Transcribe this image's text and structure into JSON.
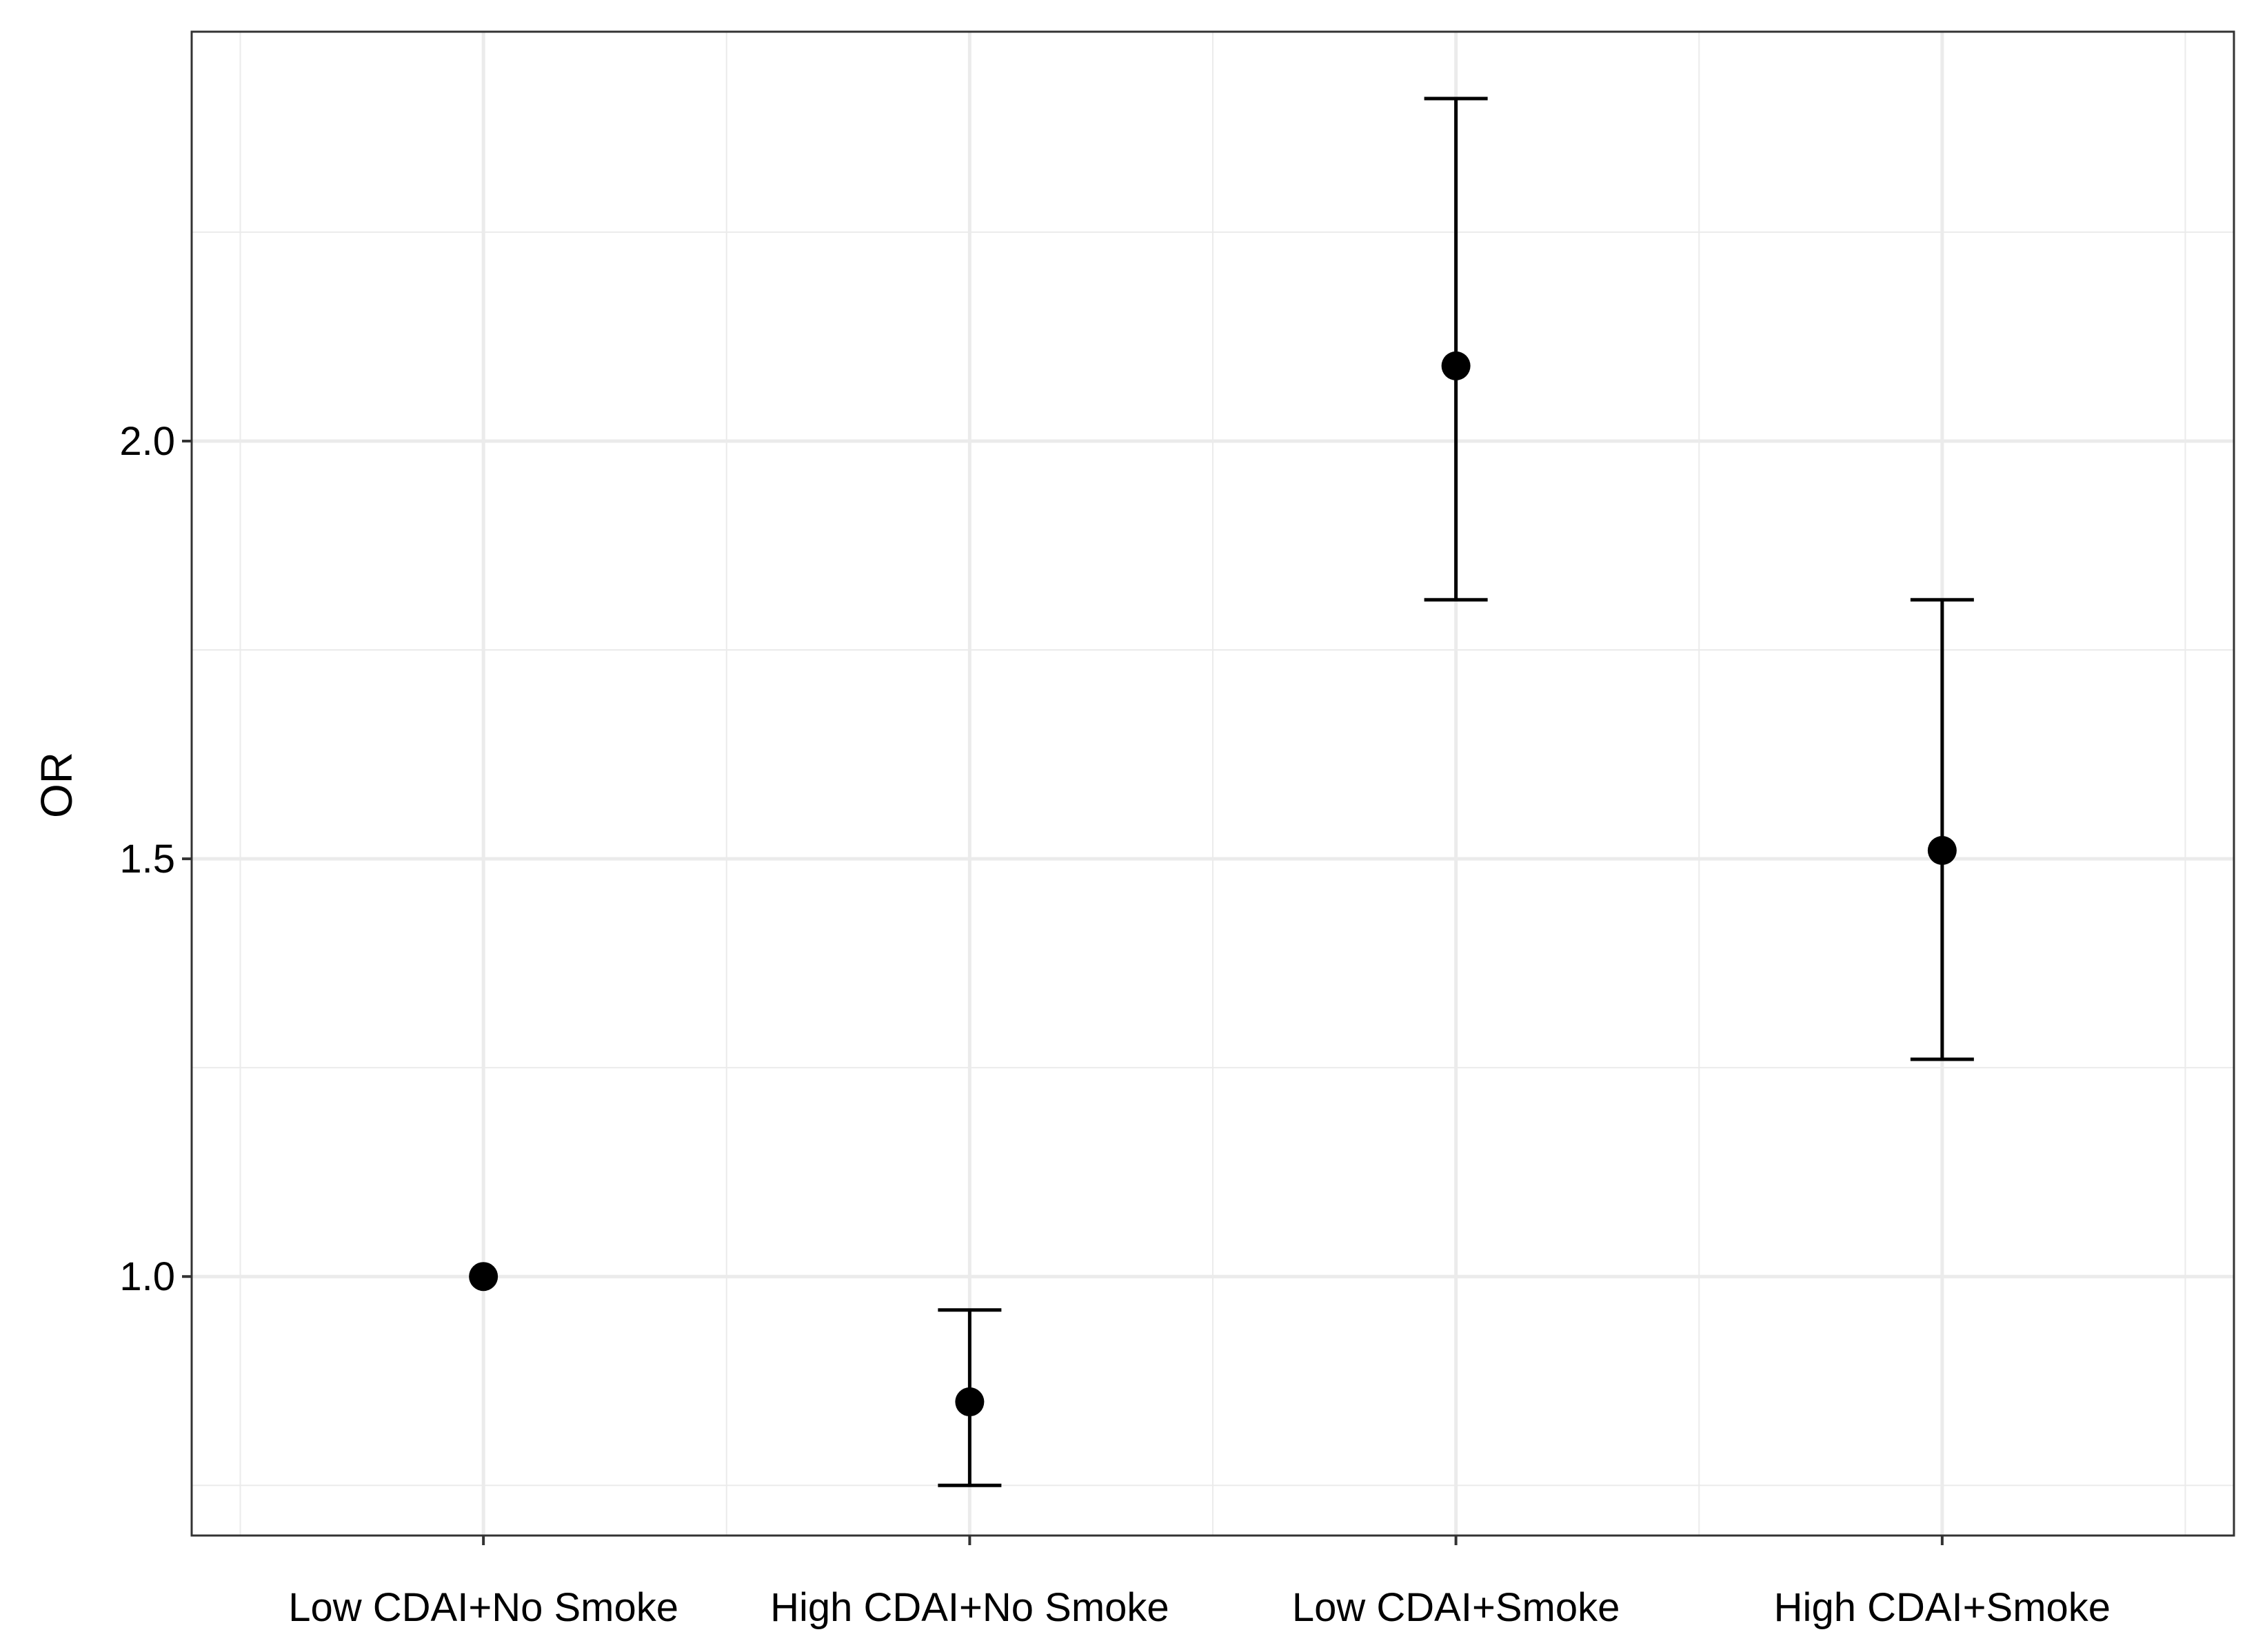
{
  "chart_data": {
    "type": "scatter",
    "subtype": "point-with-error-bars",
    "title": "",
    "xlabel": "",
    "ylabel": "OR",
    "categories": [
      "Low CDAI+No Smoke",
      "High CDAI+No Smoke",
      "Low CDAI+Smoke",
      "High CDAI+Smoke"
    ],
    "series": [
      {
        "name": "OR",
        "values": [
          1.0,
          0.85,
          2.09,
          1.51
        ],
        "lower": [
          null,
          0.75,
          1.81,
          1.26
        ],
        "upper": [
          null,
          0.96,
          2.41,
          1.81
        ]
      }
    ],
    "ylim": [
      0.69,
      2.49
    ],
    "y_ticks": [
      1.0,
      1.5,
      2.0
    ],
    "y_tick_labels": [
      "1.0",
      "1.5",
      "2.0"
    ],
    "y_minor_ticks": [
      0.75,
      1.25,
      1.75,
      2.25
    ],
    "grid": true,
    "legend": "none",
    "colors": {
      "points": "#000000",
      "grid": "#ebebeb",
      "panel_border": "#333333",
      "background": "#ffffff"
    }
  }
}
